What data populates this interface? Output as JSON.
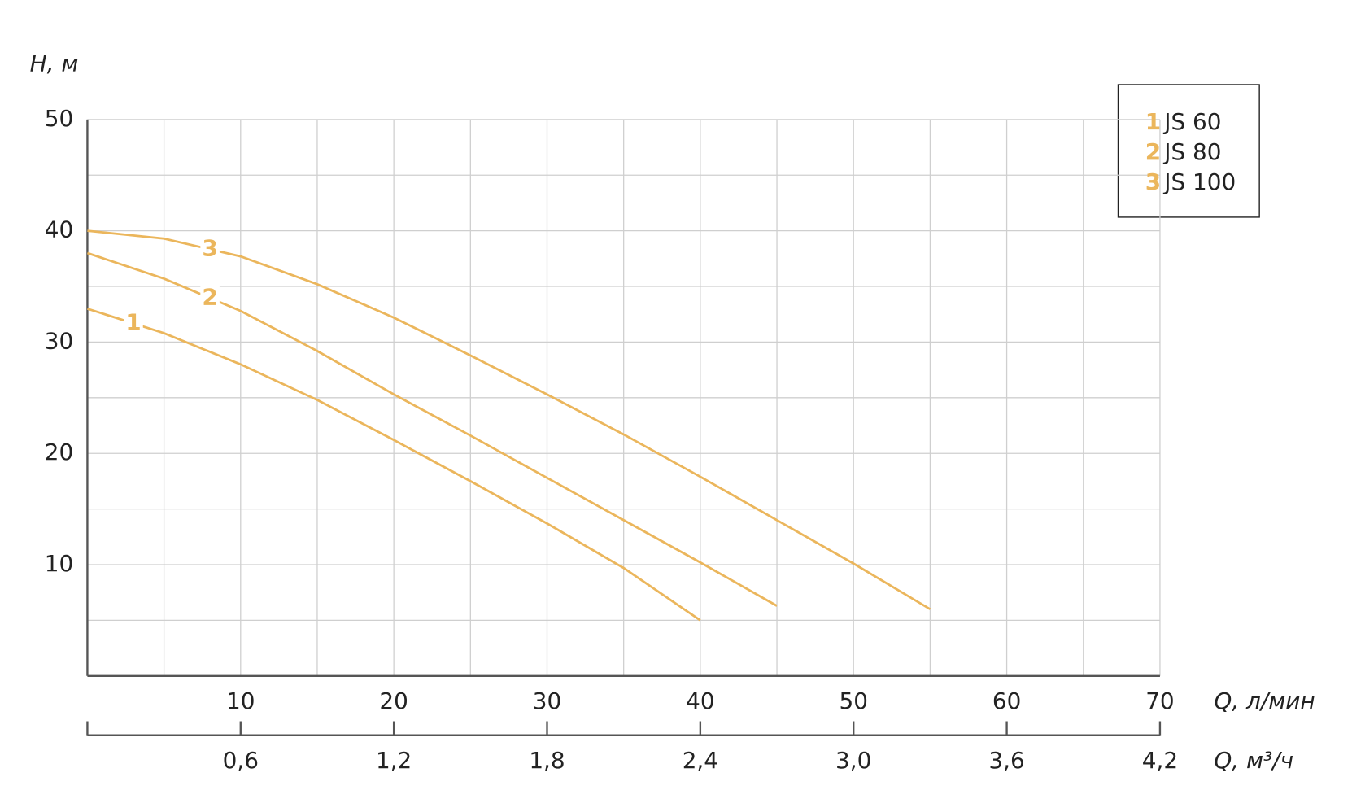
{
  "chart_data": {
    "type": "line",
    "y_label": "H, м",
    "x_label": "Q, л/мин",
    "x2_label": "Q, м³/ч",
    "xlim": [
      0,
      70
    ],
    "xticks": [
      10,
      20,
      30,
      40,
      50,
      60,
      70
    ],
    "xminorticks": [
      5,
      15,
      25,
      35,
      45,
      55,
      65
    ],
    "x2lim": [
      0,
      4.2
    ],
    "x2ticks": [
      {
        "value": 0.6,
        "label": "0,6"
      },
      {
        "value": 1.2,
        "label": "1,2"
      },
      {
        "value": 1.8,
        "label": "1,8"
      },
      {
        "value": 2.4,
        "label": "2,4"
      },
      {
        "value": 3.0,
        "label": "3,0"
      },
      {
        "value": 3.6,
        "label": "3,6"
      },
      {
        "value": 4.2,
        "label": "4,2"
      }
    ],
    "ylim": [
      0,
      50
    ],
    "yticks": [
      10,
      20,
      30,
      40,
      50
    ],
    "yminorticks": [
      5,
      15,
      25,
      35,
      45
    ],
    "grid": true,
    "legend": "top-right",
    "series": [
      {
        "number": "1",
        "name": "JS 60",
        "color": "#ebb65c",
        "x": [
          0,
          5,
          10,
          15,
          20,
          25,
          30,
          35,
          40
        ],
        "values": [
          33,
          30.8,
          28,
          24.8,
          21.2,
          17.5,
          13.7,
          9.7,
          5
        ]
      },
      {
        "number": "2",
        "name": "JS 80",
        "color": "#ebb65c",
        "x": [
          0,
          5,
          10,
          15,
          20,
          25,
          30,
          35,
          40,
          45
        ],
        "values": [
          38,
          35.7,
          32.8,
          29.2,
          25.3,
          21.6,
          17.8,
          14,
          10.2,
          6.3
        ]
      },
      {
        "number": "3",
        "name": "JS 100",
        "color": "#ebb65c",
        "x": [
          0,
          5,
          10,
          15,
          20,
          25,
          30,
          35,
          40,
          45,
          50,
          55
        ],
        "values": [
          40,
          39.3,
          37.7,
          35.2,
          32.2,
          28.8,
          25.3,
          21.7,
          17.9,
          14,
          10.1,
          6
        ]
      }
    ]
  }
}
